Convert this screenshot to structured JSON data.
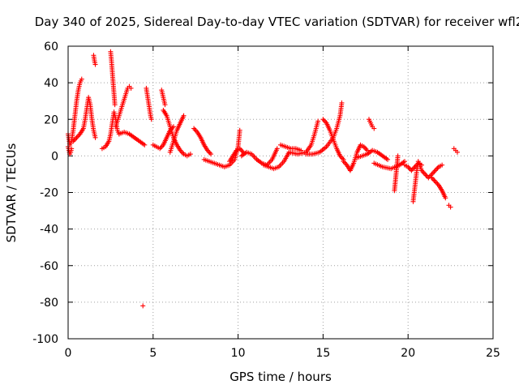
{
  "chart_data": {
    "type": "scatter",
    "title": "Day 340 of 2025, Sidereal Day-to-day VTEC variation (SDTVAR) for receiver wfl2",
    "xlabel": "GPS time / hours",
    "ylabel": "SDTVAR / TECUs",
    "xlim": [
      0,
      25
    ],
    "ylim": [
      -100,
      60
    ],
    "xticks": [
      0,
      5,
      10,
      15,
      20,
      25
    ],
    "yticks": [
      -100,
      -80,
      -60,
      -40,
      -20,
      0,
      20,
      40,
      60
    ],
    "grid": true,
    "marker": "+",
    "color": "#ff0000",
    "series": [
      {
        "name": "arc1",
        "x": [
          0.0,
          0.1,
          0.2,
          0.3,
          0.4,
          0.5,
          0.6,
          0.7,
          0.8
        ],
        "y": [
          12,
          6,
          8,
          14,
          22,
          30,
          36,
          40,
          42
        ]
      },
      {
        "name": "arc2",
        "x": [
          0.0,
          0.05,
          0.1,
          0.15,
          0.2
        ],
        "y": [
          5,
          3,
          1,
          2,
          4
        ]
      },
      {
        "name": "arc3",
        "x": [
          0.3,
          0.5,
          0.7,
          0.9,
          1.0,
          1.1,
          1.2,
          1.3,
          1.4,
          1.5,
          1.6
        ],
        "y": [
          8,
          10,
          12,
          15,
          20,
          26,
          32,
          28,
          20,
          14,
          10
        ]
      },
      {
        "name": "arc4",
        "x": [
          1.5,
          1.55,
          1.6
        ],
        "y": [
          55,
          52,
          50
        ]
      },
      {
        "name": "arc5",
        "x": [
          2.0,
          2.2,
          2.4,
          2.5,
          2.6,
          2.7,
          2.8,
          2.9,
          3.0
        ],
        "y": [
          4,
          5,
          8,
          12,
          18,
          24,
          20,
          14,
          12
        ]
      },
      {
        "name": "arc6",
        "x": [
          2.5,
          2.55,
          2.6,
          2.65,
          2.7,
          2.75
        ],
        "y": [
          57,
          52,
          46,
          40,
          34,
          28
        ]
      },
      {
        "name": "arc7",
        "x": [
          2.8,
          3.0,
          3.2,
          3.4,
          3.5,
          3.6,
          3.7
        ],
        "y": [
          16,
          22,
          28,
          34,
          37,
          38,
          37
        ]
      },
      {
        "name": "arc8",
        "x": [
          3.0,
          3.3,
          3.6,
          3.9,
          4.2,
          4.5
        ],
        "y": [
          12,
          13,
          12,
          10,
          8,
          6
        ]
      },
      {
        "name": "arc9",
        "x": [
          4.6,
          4.65,
          4.7,
          4.75,
          4.8,
          4.85,
          4.9
        ],
        "y": [
          37,
          34,
          31,
          28,
          25,
          22,
          20
        ]
      },
      {
        "name": "arc10",
        "x": [
          4.4
        ],
        "y": [
          -82
        ]
      },
      {
        "name": "arc11",
        "x": [
          5.0,
          5.2,
          5.4,
          5.6,
          5.8,
          6.0,
          6.2
        ],
        "y": [
          6,
          5,
          4,
          6,
          10,
          14,
          16
        ]
      },
      {
        "name": "arc12",
        "x": [
          5.5,
          5.55,
          5.6,
          5.65,
          5.7
        ],
        "y": [
          36,
          34,
          32,
          30,
          28
        ]
      },
      {
        "name": "arc13",
        "x": [
          5.6,
          5.8,
          6.0,
          6.2,
          6.4,
          6.6,
          6.8,
          7.0,
          7.2
        ],
        "y": [
          25,
          22,
          16,
          10,
          6,
          3,
          1,
          0,
          1
        ]
      },
      {
        "name": "arc14",
        "x": [
          6.0,
          6.2,
          6.4,
          6.6,
          6.8
        ],
        "y": [
          2,
          8,
          14,
          18,
          22
        ]
      },
      {
        "name": "arc15",
        "x": [
          7.4,
          7.6,
          7.8,
          8.0,
          8.2,
          8.4
        ],
        "y": [
          15,
          13,
          10,
          6,
          3,
          1
        ]
      },
      {
        "name": "arc16",
        "x": [
          8.0,
          8.3,
          8.6,
          8.9,
          9.2,
          9.5,
          9.8,
          10.0,
          10.1
        ],
        "y": [
          -2,
          -3,
          -4,
          -5,
          -6,
          -5,
          -2,
          5,
          14
        ]
      },
      {
        "name": "arc17",
        "x": [
          9.5,
          9.7,
          9.9,
          10.1,
          10.3
        ],
        "y": [
          -3,
          0,
          3,
          4,
          2
        ]
      },
      {
        "name": "arc18",
        "x": [
          10.2,
          10.5,
          10.8,
          11.1,
          11.4,
          11.7,
          12.0,
          12.3
        ],
        "y": [
          0,
          2,
          1,
          -2,
          -4,
          -5,
          -2,
          4
        ]
      },
      {
        "name": "arc19",
        "x": [
          11.5,
          11.8,
          12.1,
          12.4,
          12.7,
          13.0
        ],
        "y": [
          -5,
          -6,
          -7,
          -6,
          -3,
          2
        ]
      },
      {
        "name": "arc20",
        "x": [
          12.5,
          12.8,
          13.1,
          13.4,
          13.7
        ],
        "y": [
          6,
          5,
          4,
          4,
          3
        ]
      },
      {
        "name": "arc21",
        "x": [
          13.0,
          13.5,
          14.0,
          14.3,
          14.5,
          14.7
        ],
        "y": [
          2,
          1,
          2,
          6,
          12,
          19
        ]
      },
      {
        "name": "arc22",
        "x": [
          14.0,
          14.4,
          14.8,
          15.2,
          15.6,
          15.8,
          16.0,
          16.1
        ],
        "y": [
          1,
          1,
          2,
          5,
          10,
          15,
          22,
          29
        ]
      },
      {
        "name": "arc23",
        "x": [
          15.0,
          15.2,
          15.4,
          15.6,
          15.8,
          16.0,
          16.2
        ],
        "y": [
          20,
          18,
          14,
          9,
          4,
          0,
          -2
        ]
      },
      {
        "name": "arc24",
        "x": [
          16.2,
          16.4,
          16.6,
          16.8,
          17.0,
          17.2,
          17.4,
          17.6
        ],
        "y": [
          -3,
          -5,
          -8,
          -4,
          2,
          6,
          5,
          3
        ]
      },
      {
        "name": "arc25",
        "x": [
          17.0,
          17.3,
          17.6,
          17.9,
          18.2,
          18.5,
          18.8
        ],
        "y": [
          -1,
          0,
          1,
          3,
          2,
          0,
          -2
        ]
      },
      {
        "name": "arc26",
        "x": [
          17.7,
          17.8,
          17.9,
          18.0
        ],
        "y": [
          20,
          18,
          16,
          15
        ]
      },
      {
        "name": "arc27",
        "x": [
          18.0,
          18.5,
          19.0,
          19.5,
          19.8
        ],
        "y": [
          -4,
          -6,
          -7,
          -5,
          -3
        ]
      },
      {
        "name": "arc28",
        "x": [
          19.2,
          19.4
        ],
        "y": [
          -19,
          0
        ]
      },
      {
        "name": "arc29",
        "x": [
          19.8,
          20.0,
          20.2,
          20.4,
          20.6,
          20.8
        ],
        "y": [
          -5,
          -6,
          -8,
          -6,
          -4,
          -5
        ]
      },
      {
        "name": "arc30",
        "x": [
          20.3,
          20.35,
          20.4,
          20.45,
          20.5,
          20.55
        ],
        "y": [
          -25,
          -21,
          -17,
          -13,
          -9,
          -6
        ]
      },
      {
        "name": "arc31",
        "x": [
          20.6,
          20.8,
          21.0,
          21.2,
          21.4,
          21.6,
          21.8,
          22.0
        ],
        "y": [
          -3,
          -8,
          -10,
          -12,
          -10,
          -8,
          -6,
          -5
        ]
      },
      {
        "name": "arc32",
        "x": [
          21.4,
          21.6,
          21.8,
          22.0,
          22.2
        ],
        "y": [
          -12,
          -14,
          -16,
          -19,
          -23
        ]
      },
      {
        "name": "arc33",
        "x": [
          22.4,
          22.5
        ],
        "y": [
          -27,
          -28
        ]
      },
      {
        "name": "arc34",
        "x": [
          22.7,
          22.8,
          22.9
        ],
        "y": [
          4,
          3,
          2
        ]
      }
    ]
  }
}
